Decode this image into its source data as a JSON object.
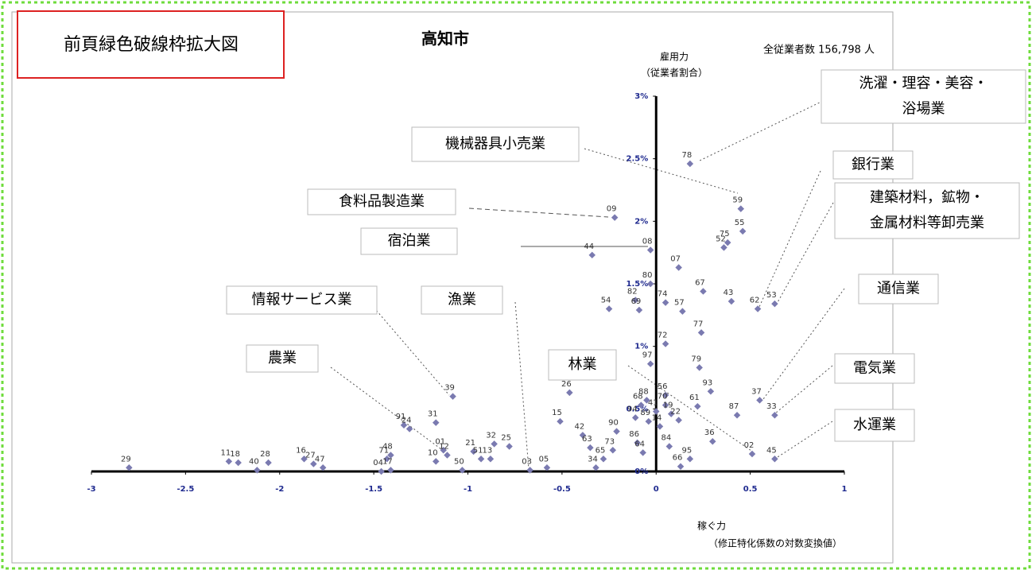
{
  "chart_data": {
    "type": "scatter",
    "title": "高知市",
    "note": "前頁緑色破線枠拡大図",
    "total_label": "全従業者数 156,798 人",
    "y_axis_label": [
      "雇用力",
      "（従業者割合）"
    ],
    "x_axis_label": [
      "稼ぐ力",
      "（修正特化係数の対数変換値）"
    ],
    "xlim": [
      -3,
      1
    ],
    "ylim": [
      0,
      3
    ],
    "xticks": [
      -3,
      -2.5,
      -2,
      -1.5,
      -1,
      -0.5,
      0,
      0.5,
      1
    ],
    "yticks": [
      {
        "value": 0,
        "label": "0%"
      },
      {
        "value": 0.5,
        "label": "0.5%"
      },
      {
        "value": 1,
        "label": "1%"
      },
      {
        "value": 1.5,
        "label": "1.5%"
      },
      {
        "value": 2,
        "label": "2%"
      },
      {
        "value": 2.5,
        "label": "2.5%"
      },
      {
        "value": 3,
        "label": "3%"
      }
    ],
    "color": "#7a7ab0",
    "point_labels": [
      "78",
      "59",
      "55",
      "52",
      "75",
      "09",
      "44",
      "08",
      "07",
      "80",
      "82",
      "69",
      "54",
      "74",
      "57",
      "67",
      "43",
      "62",
      "53",
      "77",
      "72",
      "79",
      "97",
      "93",
      "56",
      "61",
      "37",
      "33",
      "87",
      "70",
      "88",
      "68",
      "41",
      "19",
      "22",
      "94",
      "89",
      "14",
      "36",
      "02",
      "45",
      "84",
      "95",
      "66",
      "86",
      "90",
      "64",
      "26",
      "15",
      "42",
      "63",
      "65",
      "73",
      "34",
      "05",
      "03",
      "39",
      "31",
      "01",
      "32",
      "25",
      "21",
      "12",
      "51",
      "13",
      "10",
      "50",
      "91",
      "24",
      "71",
      "48",
      "17",
      "04",
      "16",
      "27",
      "47",
      "28",
      "40",
      "11",
      "18",
      "29"
    ],
    "x": [
      0.18,
      0.45,
      0.46,
      0.36,
      0.38,
      -0.22,
      -0.34,
      -0.03,
      0.12,
      -0.03,
      -0.11,
      -0.09,
      -0.25,
      0.05,
      0.14,
      0.25,
      0.4,
      0.54,
      0.63,
      0.24,
      0.05,
      0.23,
      -0.03,
      0.29,
      0.05,
      0.22,
      0.55,
      0.63,
      0.43,
      0.05,
      -0.05,
      -0.08,
      0.0,
      0.08,
      0.12,
      -0.11,
      -0.04,
      0.02,
      0.3,
      0.51,
      0.63,
      0.07,
      0.18,
      0.13,
      -0.1,
      -0.21,
      -0.07,
      -0.46,
      -0.51,
      -0.39,
      -0.35,
      -0.28,
      -0.23,
      -0.32,
      -0.58,
      -0.67,
      -1.08,
      -1.17,
      -1.13,
      -0.86,
      -0.78,
      -0.97,
      -1.11,
      -0.93,
      -0.88,
      -1.17,
      -1.03,
      -1.34,
      -1.31,
      -1.43,
      -1.41,
      -1.41,
      -1.46,
      -1.87,
      -1.82,
      -1.77,
      -2.06,
      -2.12,
      -2.27,
      -2.22,
      -2.8
    ],
    "values": [
      2.46,
      2.1,
      1.92,
      1.79,
      1.83,
      2.03,
      1.73,
      1.77,
      1.63,
      1.5,
      1.37,
      1.29,
      1.3,
      1.35,
      1.28,
      1.44,
      1.36,
      1.3,
      1.34,
      1.11,
      1.02,
      0.83,
      0.86,
      0.64,
      0.61,
      0.52,
      0.57,
      0.45,
      0.45,
      0.53,
      0.57,
      0.53,
      0.48,
      0.46,
      0.41,
      0.43,
      0.4,
      0.36,
      0.24,
      0.14,
      0.1,
      0.2,
      0.1,
      0.04,
      0.23,
      0.32,
      0.15,
      0.63,
      0.4,
      0.29,
      0.19,
      0.1,
      0.17,
      0.03,
      0.03,
      0.01,
      0.6,
      0.39,
      0.17,
      0.22,
      0.2,
      0.16,
      0.13,
      0.1,
      0.1,
      0.08,
      0.01,
      0.37,
      0.34,
      0.1,
      0.13,
      0.01,
      0.0,
      0.1,
      0.06,
      0.03,
      0.07,
      0.01,
      0.08,
      0.07,
      0.03
    ],
    "callouts": [
      [
        "洗濯・理容・美容・",
        "浴場業"
      ],
      [
        "機械器具小売業"
      ],
      [
        "食料品製造業"
      ],
      [
        "宿泊業"
      ],
      [
        "銀行業"
      ],
      [
        "建築材料，鉱物・",
        "金属材料等卸売業"
      ],
      [
        "情報サービス業"
      ],
      [
        "漁業"
      ],
      [
        "通信業"
      ],
      [
        "農業"
      ],
      [
        "林業"
      ],
      [
        "電気業"
      ],
      [
        "水運業"
      ]
    ]
  }
}
